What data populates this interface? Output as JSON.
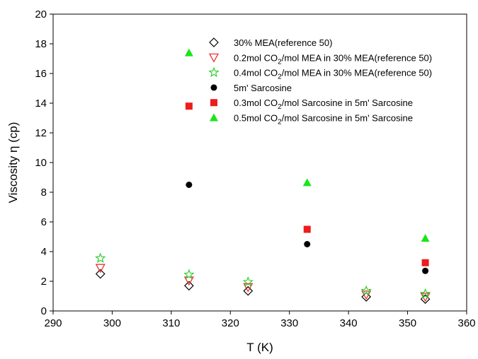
{
  "chart_data": {
    "type": "scatter",
    "xlabel": "T (K)",
    "ylabel": "Viscosity η (cp)",
    "xlim": [
      290,
      360
    ],
    "ylim": [
      0,
      20
    ],
    "x_ticks": [
      290,
      300,
      310,
      320,
      330,
      340,
      350,
      360
    ],
    "y_ticks": [
      0,
      2,
      4,
      6,
      8,
      10,
      12,
      14,
      16,
      18,
      20
    ],
    "grid": false,
    "legend_position": "top-right",
    "series": [
      {
        "name": "30% MEA(reference 50)",
        "marker": "diamond-open",
        "color": "#000000",
        "x": [
          298,
          313,
          323,
          343,
          353
        ],
        "y": [
          2.5,
          1.7,
          1.35,
          0.95,
          0.8
        ]
      },
      {
        "name": "0.2mol CO2/mol MEA in 30% MEA(reference 50)",
        "name_parts": [
          "0.2mol CO",
          "2",
          "/mol MEA in 30% MEA(reference 50)"
        ],
        "marker": "triangle-down-open",
        "color": "#e8231f",
        "x": [
          298,
          313,
          323,
          343,
          353
        ],
        "y": [
          2.9,
          2.05,
          1.6,
          1.1,
          0.95
        ]
      },
      {
        "name": "0.4mol CO2/mol MEA in 30% MEA(reference 50)",
        "name_parts": [
          "0.4mol CO",
          "2",
          "/mol MEA in 30% MEA(reference 50)"
        ],
        "marker": "star-open",
        "color": "#22cc22",
        "x": [
          298,
          313,
          323,
          343,
          353
        ],
        "y": [
          3.55,
          2.45,
          1.95,
          1.35,
          1.15
        ]
      },
      {
        "name": "5m' Sarcosine",
        "marker": "circle-filled",
        "color": "#000000",
        "x": [
          313,
          333,
          353
        ],
        "y": [
          8.5,
          4.5,
          2.7
        ]
      },
      {
        "name": "0.3mol CO2/mol Sarcosine in 5m' Sarcosine",
        "name_parts": [
          "0.3mol CO",
          "2",
          "/mol Sarcosine in 5m' Sarcosine"
        ],
        "marker": "square-filled",
        "color": "#ee1c1c",
        "x": [
          313,
          333,
          353
        ],
        "y": [
          13.8,
          5.5,
          3.25
        ]
      },
      {
        "name": "0.5mol CO2/mol Sarcosine in 5m' Sarcosine",
        "name_parts": [
          "0.5mol CO",
          "2",
          "/mol Sarcosine in 5m' Sarcosine"
        ],
        "marker": "triangle-up-filled",
        "color": "#19e619",
        "x": [
          313,
          333,
          353
        ],
        "y": [
          17.4,
          8.65,
          4.9
        ]
      }
    ]
  }
}
